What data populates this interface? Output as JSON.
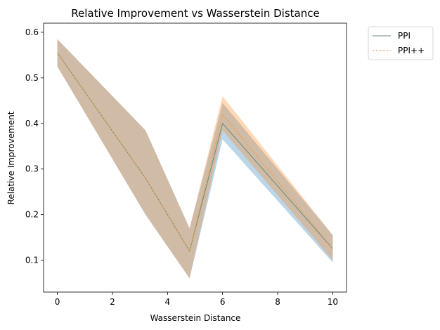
{
  "chart_data": {
    "type": "line",
    "title": "Relative Improvement vs Wasserstein Distance",
    "xlabel": "Wasserstein Distance",
    "ylabel": "Relative Improvement",
    "xlim": [
      -0.5,
      10.5
    ],
    "ylim": [
      0.03,
      0.62
    ],
    "xticks": [
      0,
      2,
      4,
      6,
      8,
      10
    ],
    "yticks": [
      0.1,
      0.2,
      0.3,
      0.4,
      0.5,
      0.6
    ],
    "x": [
      0,
      3.2,
      4.8,
      6.0,
      10
    ],
    "grid": false,
    "legend_position": "outside top-right",
    "series": [
      {
        "name": "PPI",
        "style": "solid",
        "color": "#1f77b4",
        "line_color": "#6b8a7a",
        "values": [
          0.555,
          0.28,
          0.12,
          0.4,
          0.125
        ],
        "lower": [
          0.525,
          0.2,
          0.06,
          0.365,
          0.095
        ],
        "upper": [
          0.585,
          0.385,
          0.17,
          0.445,
          0.155
        ]
      },
      {
        "name": "PPI++",
        "style": "dashed",
        "color": "#ff7f0e",
        "line_color": "#e8a050",
        "values": [
          0.555,
          0.28,
          0.12,
          0.42,
          0.125
        ],
        "lower": [
          0.525,
          0.2,
          0.06,
          0.385,
          0.1
        ],
        "upper": [
          0.585,
          0.385,
          0.17,
          0.46,
          0.155
        ]
      }
    ]
  }
}
